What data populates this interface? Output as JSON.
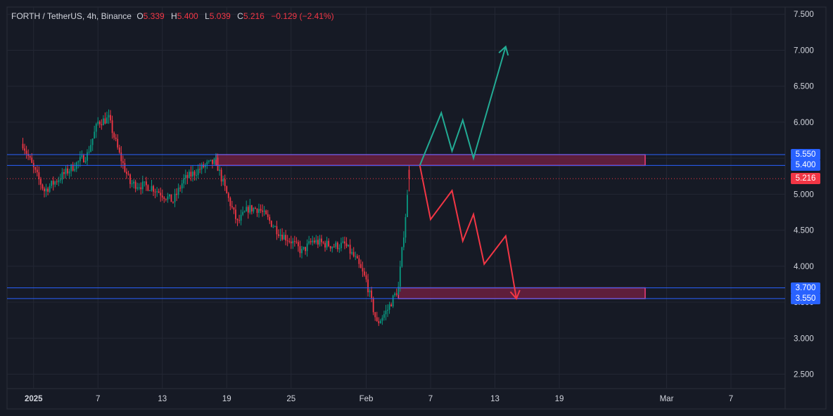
{
  "legend": {
    "symbol": "FORTH / TetherUS, 4h, Binance",
    "open_label": "O",
    "open_value": "5.339",
    "high_label": "H",
    "high_value": "5.400",
    "low_label": "L",
    "low_value": "5.039",
    "close_label": "C",
    "close_value": "5.216",
    "change": "−0.129 (−2.41%)"
  },
  "price_tags": {
    "level_upper_top": "5.550",
    "level_upper_bottom": "5.400",
    "last_price": "5.216",
    "level_lower_top": "3.700",
    "level_lower_bottom": "3.550"
  },
  "colors": {
    "background": "#161a25",
    "grid": "#232734",
    "axis_text": "#d1d4dc",
    "up_candle": "#089981",
    "down_candle": "#f23645",
    "level_line": "#2962ff",
    "zone_border": "#f23d7a",
    "zone_fill": "#6b2040",
    "bull_path": "#22ab94",
    "bear_path": "#f23645",
    "last_price_tag": "#f23645",
    "level_tag": "#2962ff"
  },
  "chart_data": {
    "type": "candlestick",
    "symbol": "FORTH / TetherUS",
    "timeframe": "4h",
    "exchange": "Binance",
    "y_axis": {
      "ticks": [
        "7.500",
        "7.000",
        "6.500",
        "6.000",
        "5.500",
        "5.000",
        "4.500",
        "4.000",
        "3.500",
        "3.000",
        "2.500"
      ],
      "range": [
        2.3,
        7.6
      ]
    },
    "x_axis": {
      "ticks": [
        {
          "label": "2025",
          "bold": true
        },
        {
          "label": "7"
        },
        {
          "label": "13"
        },
        {
          "label": "19"
        },
        {
          "label": "25"
        },
        {
          "label": "Feb"
        },
        {
          "label": "7"
        },
        {
          "label": "13"
        },
        {
          "label": "19"
        },
        {
          "label": "Mar"
        },
        {
          "label": "7"
        }
      ],
      "range": [
        "2024-12-31",
        "2025-03-13"
      ]
    },
    "price_path_approx": [
      {
        "date": "2024-12-31",
        "price": 5.7
      },
      {
        "date": "2025-01-01",
        "price": 5.35
      },
      {
        "date": "2025-01-02",
        "price": 5.05
      },
      {
        "date": "2025-01-04",
        "price": 5.3
      },
      {
        "date": "2025-01-06",
        "price": 5.55
      },
      {
        "date": "2025-01-07",
        "price": 6.0
      },
      {
        "date": "2025-01-08",
        "price": 6.05
      },
      {
        "date": "2025-01-09",
        "price": 5.55
      },
      {
        "date": "2025-01-10",
        "price": 5.15
      },
      {
        "date": "2025-01-12",
        "price": 5.1
      },
      {
        "date": "2025-01-13",
        "price": 5.0
      },
      {
        "date": "2025-01-14",
        "price": 4.9
      },
      {
        "date": "2025-01-15",
        "price": 5.2
      },
      {
        "date": "2025-01-17",
        "price": 5.4
      },
      {
        "date": "2025-01-18",
        "price": 5.45
      },
      {
        "date": "2025-01-19",
        "price": 5.0
      },
      {
        "date": "2025-01-20",
        "price": 4.6
      },
      {
        "date": "2025-01-21",
        "price": 4.8
      },
      {
        "date": "2025-01-22",
        "price": 4.8
      },
      {
        "date": "2025-01-24",
        "price": 4.45
      },
      {
        "date": "2025-01-25",
        "price": 4.35
      },
      {
        "date": "2025-01-26",
        "price": 4.2
      },
      {
        "date": "2025-01-27",
        "price": 4.35
      },
      {
        "date": "2025-01-29",
        "price": 4.28
      },
      {
        "date": "2025-01-30",
        "price": 4.3
      },
      {
        "date": "2025-01-31",
        "price": 4.1
      },
      {
        "date": "2025-02-01",
        "price": 3.8
      },
      {
        "date": "2025-02-02",
        "price": 3.2
      },
      {
        "date": "2025-02-03",
        "price": 3.4
      },
      {
        "date": "2025-02-04",
        "price": 3.7
      },
      {
        "date": "2025-02-05",
        "price": 5.216
      }
    ],
    "last_candle": {
      "open": 5.339,
      "high": 5.4,
      "low": 5.039,
      "close": 5.216,
      "change": -0.129,
      "change_pct": -2.41
    },
    "levels": [
      5.55,
      5.4,
      3.7,
      3.55
    ],
    "zones": [
      {
        "name": "resistance",
        "from": 5.4,
        "to": 5.55,
        "start": "2025-01-18",
        "end": "2025-02-27"
      },
      {
        "name": "support",
        "from": 3.55,
        "to": 3.7,
        "start": "2025-02-04",
        "end": "2025-02-27"
      }
    ],
    "projections": [
      {
        "name": "bullish",
        "points": [
          {
            "date": "2025-02-06",
            "price": 5.4
          },
          {
            "date": "2025-02-08",
            "price": 6.13
          },
          {
            "date": "2025-02-09",
            "price": 5.6
          },
          {
            "date": "2025-02-10",
            "price": 6.03
          },
          {
            "date": "2025-02-11",
            "price": 5.5
          },
          {
            "date": "2025-02-14",
            "price": 7.05
          }
        ]
      },
      {
        "name": "bearish",
        "points": [
          {
            "date": "2025-02-06",
            "price": 5.4
          },
          {
            "date": "2025-02-07",
            "price": 4.65
          },
          {
            "date": "2025-02-09",
            "price": 5.05
          },
          {
            "date": "2025-02-10",
            "price": 4.35
          },
          {
            "date": "2025-02-11",
            "price": 4.72
          },
          {
            "date": "2025-02-12",
            "price": 4.03
          },
          {
            "date": "2025-02-14",
            "price": 4.42
          },
          {
            "date": "2025-02-15",
            "price": 3.55
          }
        ]
      }
    ]
  }
}
